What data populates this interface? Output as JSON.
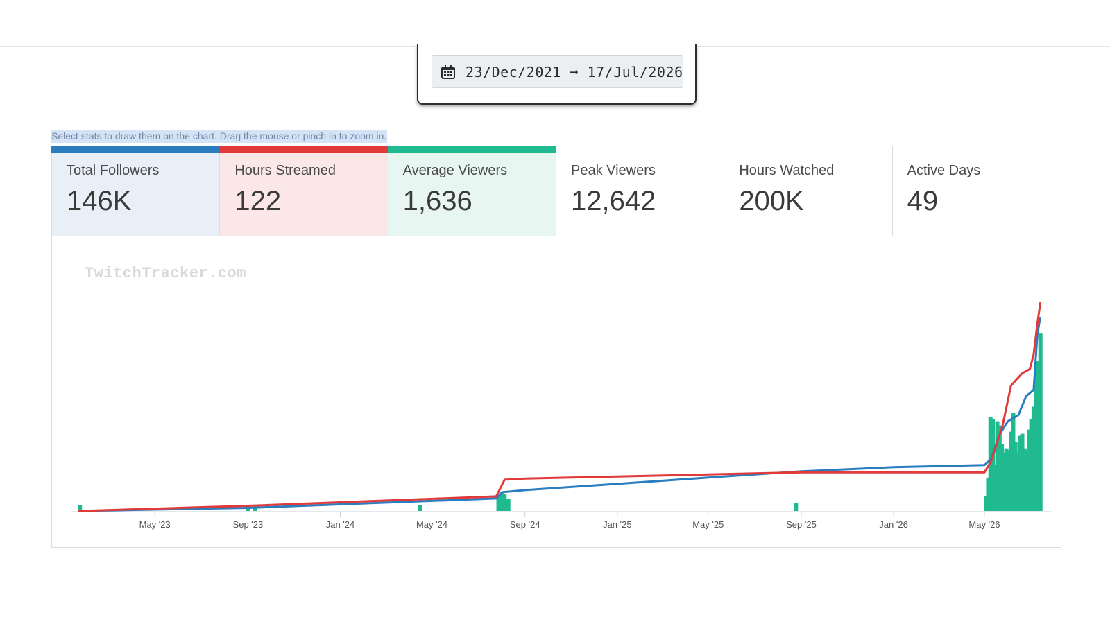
{
  "date_range": {
    "icon": "calendar-icon",
    "text": "23/Dec/2021 ➞ 17/Jul/2026"
  },
  "hint": "Select stats to draw them on the chart. Drag the mouse or pinch in to zoom in.",
  "stats": [
    {
      "label": "Total Followers",
      "value": "146K",
      "color": "#2a7dbf",
      "bg": "#e9eff7",
      "selected": true
    },
    {
      "label": "Hours Streamed",
      "value": "122",
      "color": "#e13a3a",
      "bg": "#fbe7e7",
      "selected": true
    },
    {
      "label": "Average Viewers",
      "value": "1,636",
      "color": "#1fba8f",
      "bg": "#e7f6f1",
      "selected": true
    },
    {
      "label": "Peak Viewers",
      "value": "12,642",
      "color": "",
      "bg": "#ffffff",
      "selected": false
    },
    {
      "label": "Hours Watched",
      "value": "200K",
      "color": "",
      "bg": "#ffffff",
      "selected": false
    },
    {
      "label": "Active Days",
      "value": "49",
      "color": "",
      "bg": "#ffffff",
      "selected": false
    }
  ],
  "watermark": "TwitchTracker.com",
  "chart_data": {
    "type": "line",
    "x_tick_labels": [
      "May '23",
      "Sep '23",
      "Jan '24",
      "May '24",
      "Sep '24",
      "Jan '25",
      "May '25",
      "Sep '25",
      "Jan '26",
      "May '26"
    ],
    "x_tick_dates": [
      "2023-05-01",
      "2023-09-01",
      "2024-01-01",
      "2024-05-01",
      "2024-09-01",
      "2025-01-01",
      "2025-05-01",
      "2025-09-01",
      "2026-01-01",
      "2026-05-01"
    ],
    "x_range": [
      "2023-01-20",
      "2026-07-17"
    ],
    "grid": false,
    "legend": "none",
    "series": [
      {
        "stat": "Total Followers",
        "kind": "line",
        "color": "#2a7dbf",
        "relative_values": true,
        "points": [
          [
            "2023-01-20",
            0.0
          ],
          [
            "2023-09-01",
            0.015
          ],
          [
            "2024-07-25",
            0.06
          ],
          [
            "2024-08-02",
            0.09
          ],
          [
            "2024-09-01",
            0.1
          ],
          [
            "2025-01-01",
            0.13
          ],
          [
            "2025-05-01",
            0.16
          ],
          [
            "2025-09-01",
            0.19
          ],
          [
            "2026-01-01",
            0.21
          ],
          [
            "2026-05-01",
            0.22
          ],
          [
            "2026-05-10",
            0.25
          ],
          [
            "2026-05-20",
            0.36
          ],
          [
            "2026-06-01",
            0.43
          ],
          [
            "2026-06-15",
            0.46
          ],
          [
            "2026-06-25",
            0.55
          ],
          [
            "2026-07-05",
            0.58
          ],
          [
            "2026-07-10",
            0.85
          ],
          [
            "2026-07-14",
            0.93
          ]
        ]
      },
      {
        "stat": "Hours Streamed",
        "kind": "line",
        "color": "#e13a3a",
        "relative_values": true,
        "points": [
          [
            "2023-01-20",
            0.0
          ],
          [
            "2023-09-01",
            0.025
          ],
          [
            "2024-07-25",
            0.07
          ],
          [
            "2024-08-05",
            0.15
          ],
          [
            "2024-09-01",
            0.155
          ],
          [
            "2025-01-01",
            0.165
          ],
          [
            "2025-05-01",
            0.175
          ],
          [
            "2025-09-01",
            0.185
          ],
          [
            "2026-01-01",
            0.185
          ],
          [
            "2026-05-01",
            0.185
          ],
          [
            "2026-05-10",
            0.24
          ],
          [
            "2026-05-25",
            0.41
          ],
          [
            "2026-06-05",
            0.6
          ],
          [
            "2026-06-20",
            0.66
          ],
          [
            "2026-06-30",
            0.68
          ],
          [
            "2026-07-05",
            0.75
          ],
          [
            "2026-07-10",
            0.9
          ],
          [
            "2026-07-14",
            1.0
          ]
        ]
      },
      {
        "stat": "Average Viewers",
        "kind": "bar",
        "color": "#1fba8f",
        "relative_values": true,
        "points": [
          [
            "2023-01-22",
            0.03
          ],
          [
            "2023-09-01",
            0.025
          ],
          [
            "2023-09-10",
            0.015
          ],
          [
            "2024-04-15",
            0.03
          ],
          [
            "2024-07-28",
            0.07
          ],
          [
            "2024-08-01",
            0.09
          ],
          [
            "2024-08-05",
            0.08
          ],
          [
            "2024-08-10",
            0.06
          ],
          [
            "2025-08-25",
            0.04
          ],
          [
            "2026-05-03",
            0.07
          ],
          [
            "2026-05-06",
            0.16
          ],
          [
            "2026-05-09",
            0.45
          ],
          [
            "2026-05-12",
            0.44
          ],
          [
            "2026-05-15",
            0.22
          ],
          [
            "2026-05-18",
            0.43
          ],
          [
            "2026-05-21",
            0.41
          ],
          [
            "2026-05-24",
            0.32
          ],
          [
            "2026-05-27",
            0.28
          ],
          [
            "2026-05-30",
            0.3
          ],
          [
            "2026-06-02",
            0.29
          ],
          [
            "2026-06-05",
            0.38
          ],
          [
            "2026-06-08",
            0.47
          ],
          [
            "2026-06-11",
            0.33
          ],
          [
            "2026-06-14",
            0.28
          ],
          [
            "2026-06-17",
            0.36
          ],
          [
            "2026-06-20",
            0.37
          ],
          [
            "2026-06-23",
            0.3
          ],
          [
            "2026-06-26",
            0.29
          ],
          [
            "2026-06-29",
            0.39
          ],
          [
            "2026-07-02",
            0.44
          ],
          [
            "2026-07-05",
            0.5
          ],
          [
            "2026-07-08",
            0.66
          ],
          [
            "2026-07-11",
            0.72
          ],
          [
            "2026-07-14",
            0.85
          ]
        ]
      }
    ]
  }
}
